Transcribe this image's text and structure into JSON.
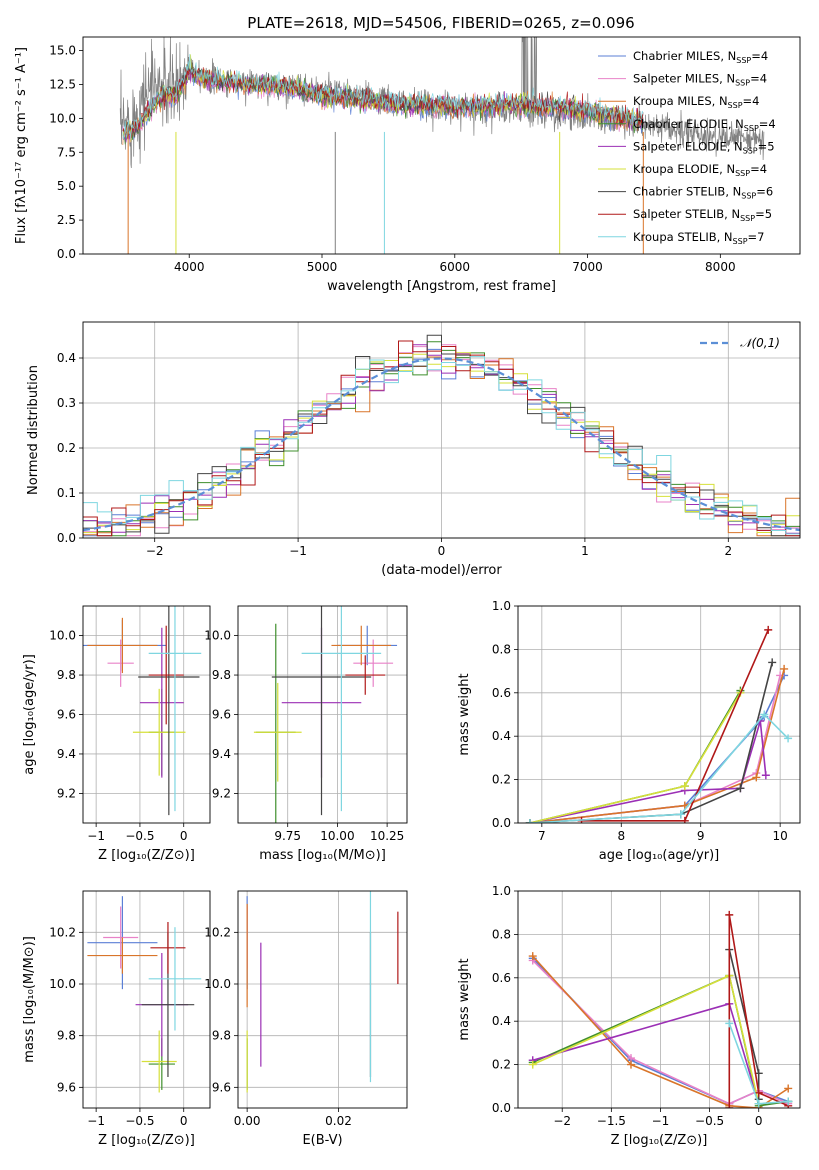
{
  "figure": {
    "title": "PLATE=2618, MJD=54506, FIBERID=0265, z=0.096"
  },
  "series_styles": [
    {
      "name": "Chabrier MILES",
      "nssp": "4",
      "color": "#5b7fd6"
    },
    {
      "name": "Salpeter MILES",
      "nssp": "4",
      "color": "#e882c8"
    },
    {
      "name": "Kroupa MILES",
      "nssp": "4",
      "color": "#d9752a"
    },
    {
      "name": "Chabrier ELODIE",
      "nssp": "4",
      "color": "#3f8f2c"
    },
    {
      "name": "Salpeter ELODIE",
      "nssp": "5",
      "color": "#9b2fb5"
    },
    {
      "name": "Kroupa ELODIE",
      "nssp": "4",
      "color": "#d6e03a"
    },
    {
      "name": "Chabrier STELIB",
      "nssp": "6",
      "color": "#444444"
    },
    {
      "name": "Salpeter STELIB",
      "nssp": "5",
      "color": "#b01818"
    },
    {
      "name": "Kroupa STELIB",
      "nssp": "7",
      "color": "#7fd6e0"
    }
  ],
  "chart_data": [
    {
      "id": "spectrum",
      "type": "line",
      "title": "PLATE=2618, MJD=54506, FIBERID=0265, z=0.096",
      "xlabel": "wavelength [Angstrom, rest frame]",
      "ylabel": "Flux [fλ10⁻¹⁷ erg cm⁻² s⁻¹ A⁻¹]",
      "xlim": [
        3200,
        8600
      ],
      "ylim": [
        0,
        16
      ],
      "xticks": [
        4000,
        5000,
        6000,
        7000,
        8000
      ],
      "yticks": [
        0.0,
        2.5,
        5.0,
        7.5,
        10.0,
        12.5,
        15.0
      ],
      "grid": false,
      "legend": "top-right",
      "observed_color": "#808080",
      "model_continuum": [
        [
          3500,
          8.8
        ],
        [
          3600,
          9.2
        ],
        [
          3700,
          10.6
        ],
        [
          3800,
          11.8
        ],
        [
          3900,
          11.6
        ],
        [
          4000,
          13.6
        ],
        [
          4100,
          13.0
        ],
        [
          4300,
          12.6
        ],
        [
          4500,
          12.5
        ],
        [
          4800,
          12.2
        ],
        [
          5000,
          11.7
        ],
        [
          5300,
          11.4
        ],
        [
          5600,
          11.0
        ],
        [
          5900,
          10.9
        ],
        [
          6200,
          10.9
        ],
        [
          6500,
          11.0
        ],
        [
          6800,
          10.8
        ],
        [
          7000,
          10.6
        ],
        [
          7200,
          10.2
        ],
        [
          7400,
          9.8
        ]
      ],
      "observed_continuum": [
        [
          3480,
          9.0
        ],
        [
          3600,
          10.2
        ],
        [
          3700,
          12.5
        ],
        [
          3800,
          12.4
        ],
        [
          3900,
          11.9
        ],
        [
          4000,
          13.8
        ],
        [
          4200,
          12.8
        ],
        [
          4400,
          12.6
        ],
        [
          4700,
          12.4
        ],
        [
          5000,
          12.0
        ],
        [
          5300,
          11.6
        ],
        [
          5600,
          11.0
        ],
        [
          5900,
          10.8
        ],
        [
          6200,
          10.6
        ],
        [
          6500,
          10.6
        ],
        [
          6800,
          10.3
        ],
        [
          7100,
          10.0
        ],
        [
          7400,
          9.5
        ],
        [
          7700,
          9.0
        ],
        [
          8000,
          8.6
        ],
        [
          8300,
          8.4
        ]
      ]
    },
    {
      "id": "residuals",
      "type": "bar",
      "xlabel": "(data-model)/error",
      "ylabel": "Normed distribution",
      "xlim": [
        -2.5,
        2.5
      ],
      "ylim": [
        0,
        0.48
      ],
      "xticks": [
        -2,
        -1,
        0,
        1,
        2
      ],
      "yticks": [
        0.0,
        0.1,
        0.2,
        0.3,
        0.4
      ],
      "grid": true,
      "legend": "top-right",
      "reference_label": "𝒩(0,1)",
      "reference_color": "#5b8fd6",
      "bin_width": 0.1
    },
    {
      "id": "age_vs_Z",
      "type": "scatter",
      "xlabel": "Z [log₁₀(Z/Z⊙)]",
      "ylabel": "age  [log₁₀(age/yr)]",
      "xlim": [
        -1.15,
        0.3
      ],
      "ylim": [
        9.05,
        10.15
      ],
      "xticks": [
        -1.0,
        -0.5,
        0.0
      ],
      "yticks": [
        9.2,
        9.4,
        9.6,
        9.8,
        10.0
      ],
      "grid": true,
      "points": [
        {
          "series": 0,
          "x": -0.7,
          "xerr": 0.5,
          "y": 9.95,
          "yerr": 0.13
        },
        {
          "series": 1,
          "x": -0.72,
          "xerr": 0.15,
          "y": 9.86,
          "yerr": 0.12
        },
        {
          "series": 2,
          "x": -0.7,
          "xerr": 0.4,
          "y": 9.95,
          "yerr": 0.14
        },
        {
          "series": 3,
          "x": -0.25,
          "xerr": 0.15,
          "y": 9.51,
          "yerr": 0.22
        },
        {
          "series": 4,
          "x": -0.25,
          "xerr": 0.25,
          "y": 9.66,
          "yerr": 0.38
        },
        {
          "series": 5,
          "x": -0.28,
          "xerr": 0.3,
          "y": 9.51,
          "yerr": 0.22
        },
        {
          "series": 6,
          "x": -0.17,
          "xerr": 0.35,
          "y": 9.79,
          "yerr": 0.7
        },
        {
          "series": 7,
          "x": -0.2,
          "xerr": 0.2,
          "y": 9.8,
          "yerr": 0.25
        },
        {
          "series": 8,
          "x": -0.1,
          "xerr": 0.3,
          "y": 9.91,
          "yerr": 0.8
        }
      ]
    },
    {
      "id": "age_vs_mass",
      "type": "scatter",
      "xlabel": "mass [log₁₀(M/M⊙)]",
      "ylabel": "",
      "xlim": [
        9.5,
        10.35
      ],
      "ylim": [
        9.05,
        10.15
      ],
      "xticks": [
        9.75,
        10.0,
        10.25
      ],
      "xticklabels": [
        "9.75",
        "10.00",
        "10.25"
      ],
      "yticks": [
        9.2,
        9.4,
        9.6,
        9.8,
        10.0
      ],
      "grid": true,
      "points": [
        {
          "series": 0,
          "x": 10.15,
          "xerr": 0.15,
          "y": 9.95,
          "yerr": 0.1
        },
        {
          "series": 1,
          "x": 10.18,
          "xerr": 0.1,
          "y": 9.86,
          "yerr": 0.12
        },
        {
          "series": 2,
          "x": 10.12,
          "xerr": 0.15,
          "y": 9.95,
          "yerr": 0.1
        },
        {
          "series": 3,
          "x": 9.69,
          "xerr": 0.1,
          "y": 9.51,
          "yerr": 0.55
        },
        {
          "series": 4,
          "x": 9.92,
          "xerr": 0.2,
          "y": 9.66,
          "yerr": 0.38
        },
        {
          "series": 5,
          "x": 9.7,
          "xerr": 0.12,
          "y": 9.51,
          "yerr": 0.25
        },
        {
          "series": 6,
          "x": 9.92,
          "xerr": 0.25,
          "y": 9.79,
          "yerr": 0.7
        },
        {
          "series": 7,
          "x": 10.14,
          "xerr": 0.1,
          "y": 9.8,
          "yerr": 0.1
        },
        {
          "series": 8,
          "x": 10.02,
          "xerr": 0.2,
          "y": 9.91,
          "yerr": 0.8
        }
      ]
    },
    {
      "id": "weight_vs_age",
      "type": "line",
      "xlabel": "age  [log₁₀(age/yr)]",
      "ylabel": "mass weight",
      "xlim": [
        6.7,
        10.25
      ],
      "ylim": [
        0,
        1.0
      ],
      "xticks": [
        7,
        8,
        9,
        10
      ],
      "yticks": [
        0.0,
        0.2,
        0.4,
        0.6,
        0.8,
        1.0
      ],
      "grid": true,
      "series": [
        {
          "series": 0,
          "x": [
            6.85,
            8.8,
            9.8,
            10.05
          ],
          "y": [
            0.0,
            0.08,
            0.49,
            0.68
          ]
        },
        {
          "series": 1,
          "x": [
            6.85,
            8.8,
            9.7,
            10.0
          ],
          "y": [
            0.0,
            0.08,
            0.23,
            0.68
          ]
        },
        {
          "series": 2,
          "x": [
            6.85,
            8.8,
            9.7,
            10.05
          ],
          "y": [
            0.0,
            0.08,
            0.21,
            0.71
          ]
        },
        {
          "series": 3,
          "x": [
            6.85,
            8.8,
            9.5
          ],
          "y": [
            0.0,
            0.17,
            0.61
          ]
        },
        {
          "series": 4,
          "x": [
            6.85,
            8.8,
            9.5,
            9.75,
            9.82
          ],
          "y": [
            0.0,
            0.15,
            0.16,
            0.47,
            0.22
          ]
        },
        {
          "series": 5,
          "x": [
            6.85,
            8.8,
            9.5
          ],
          "y": [
            0.0,
            0.17,
            0.6
          ]
        },
        {
          "series": 6,
          "x": [
            6.85,
            8.75,
            9.5,
            9.9
          ],
          "y": [
            0.0,
            0.04,
            0.16,
            0.74
          ]
        },
        {
          "series": 7,
          "x": [
            7.5,
            8.8,
            9.85
          ],
          "y": [
            0.01,
            0.01,
            0.89
          ]
        },
        {
          "series": 8,
          "x": [
            6.85,
            8.75,
            9.8,
            10.1
          ],
          "y": [
            0.0,
            0.04,
            0.5,
            0.39
          ]
        }
      ]
    },
    {
      "id": "mass_vs_Z",
      "type": "scatter",
      "xlabel": "Z [log₁₀(Z/Z⊙)]",
      "ylabel": "mass [log₁₀(M/M⊙)]",
      "xlim": [
        -1.15,
        0.3
      ],
      "ylim": [
        9.52,
        10.36
      ],
      "xticks": [
        -1.0,
        -0.5,
        0.0
      ],
      "yticks": [
        9.6,
        9.8,
        10.0,
        10.2
      ],
      "grid": true,
      "points": [
        {
          "series": 0,
          "x": -0.7,
          "xerr": 0.4,
          "y": 10.16,
          "yerr": 0.18
        },
        {
          "series": 1,
          "x": -0.72,
          "xerr": 0.2,
          "y": 10.18,
          "yerr": 0.12
        },
        {
          "series": 2,
          "x": -0.7,
          "xerr": 0.4,
          "y": 10.11,
          "yerr": 0.07
        },
        {
          "series": 3,
          "x": -0.25,
          "xerr": 0.15,
          "y": 9.69,
          "yerr": 0.1
        },
        {
          "series": 4,
          "x": -0.25,
          "xerr": 0.3,
          "y": 9.92,
          "yerr": 0.2
        },
        {
          "series": 5,
          "x": -0.28,
          "xerr": 0.2,
          "y": 9.7,
          "yerr": 0.12
        },
        {
          "series": 6,
          "x": -0.18,
          "xerr": 0.3,
          "y": 9.92,
          "yerr": 0.28
        },
        {
          "series": 7,
          "x": -0.18,
          "xerr": 0.2,
          "y": 10.14,
          "yerr": 0.1
        },
        {
          "series": 8,
          "x": -0.1,
          "xerr": 0.3,
          "y": 10.02,
          "yerr": 0.2
        }
      ]
    },
    {
      "id": "mass_vs_ebv",
      "type": "scatter",
      "xlabel": "E(B-V)",
      "ylabel": "",
      "xlim": [
        -0.002,
        0.035
      ],
      "ylim": [
        9.52,
        10.36
      ],
      "xticks": [
        0.0,
        0.02
      ],
      "xticklabels": [
        "0.00",
        "0.02"
      ],
      "yticks": [
        9.6,
        9.8,
        10.0,
        10.2
      ],
      "grid": true,
      "points": [
        {
          "series": 0,
          "x": 0.0,
          "y": 10.16,
          "yerr": 0.18
        },
        {
          "series": 1,
          "x": 0.0,
          "y": 10.18,
          "yerr": 0.12
        },
        {
          "series": 2,
          "x": 0.0,
          "y": 10.11,
          "yerr": 0.2
        },
        {
          "series": 3,
          "x": 0.0,
          "y": 9.69,
          "yerr": 0.1
        },
        {
          "series": 4,
          "x": 0.003,
          "y": 9.92,
          "yerr": 0.24
        },
        {
          "series": 5,
          "x": 0.0,
          "y": 9.7,
          "yerr": 0.12
        },
        {
          "series": 6,
          "x": 0.027,
          "y": 9.92,
          "yerr": 0.28
        },
        {
          "series": 7,
          "x": 0.033,
          "y": 10.14,
          "yerr": 0.14
        },
        {
          "series": 8,
          "x": 0.027,
          "y": 10.02,
          "yerr": 0.4
        }
      ]
    },
    {
      "id": "weight_vs_Z",
      "type": "line",
      "xlabel": "Z [log₁₀(Z/Z⊙)]",
      "ylabel": "mass weight",
      "xlim": [
        -2.45,
        0.42
      ],
      "ylim": [
        0,
        1.0
      ],
      "xticks": [
        -2.0,
        -1.5,
        -1.0,
        -0.5,
        0.0
      ],
      "yticks": [
        0.0,
        0.2,
        0.4,
        0.6,
        0.8,
        1.0
      ],
      "grid": true,
      "series": [
        {
          "series": 0,
          "x": [
            -2.3,
            -1.3,
            -0.3,
            0.0,
            0.3
          ],
          "y": [
            0.69,
            0.22,
            0.02,
            0.08,
            0.03
          ]
        },
        {
          "series": 1,
          "x": [
            -2.3,
            -1.3,
            -0.3,
            0.0,
            0.3
          ],
          "y": [
            0.68,
            0.23,
            0.02,
            0.08,
            0.02
          ]
        },
        {
          "series": 2,
          "x": [
            -2.3,
            -1.3,
            -0.3,
            0.0,
            0.3
          ],
          "y": [
            0.7,
            0.2,
            0.01,
            0.0,
            0.09
          ]
        },
        {
          "series": 3,
          "x": [
            -2.3,
            -0.3,
            0.0,
            0.3
          ],
          "y": [
            0.21,
            0.61,
            0.01,
            0.03
          ]
        },
        {
          "series": 4,
          "x": [
            -2.3,
            -0.3,
            0.0
          ],
          "y": [
            0.22,
            0.48,
            0.02
          ]
        },
        {
          "series": 5,
          "x": [
            -2.3,
            -0.3,
            0.0
          ],
          "y": [
            0.2,
            0.61,
            0.02
          ]
        },
        {
          "series": 6,
          "x": [
            -0.3,
            0.0,
            0.0
          ],
          "y": [
            0.73,
            0.16,
            0.04
          ]
        },
        {
          "series": 7,
          "x": [
            -0.3,
            -0.3,
            0.0,
            0.3
          ],
          "y": [
            0.0,
            0.89,
            0.07,
            0.01
          ]
        },
        {
          "series": 8,
          "x": [
            -0.3,
            0.0,
            0.3
          ],
          "y": [
            0.39,
            0.02,
            0.03
          ]
        }
      ]
    }
  ]
}
